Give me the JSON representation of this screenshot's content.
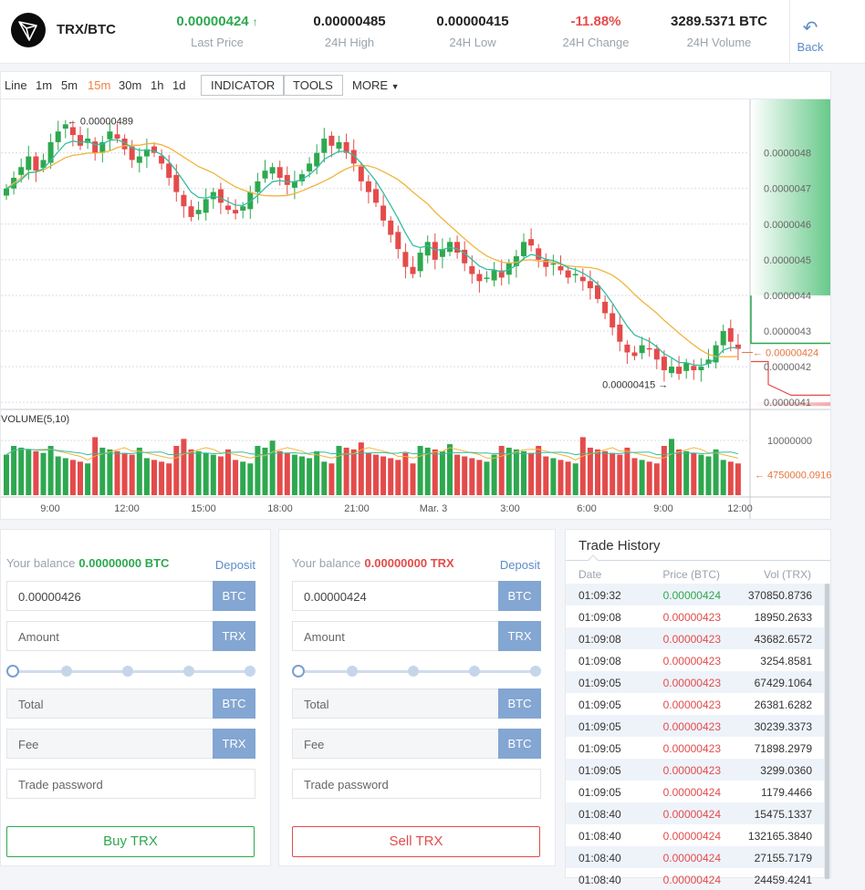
{
  "header": {
    "pair": "TRX/BTC",
    "stats": [
      {
        "value": "0.00000424",
        "label": "Last Price",
        "tone": "green",
        "arrow": "up"
      },
      {
        "value": "0.00000485",
        "label": "24H High",
        "tone": "dark"
      },
      {
        "value": "0.00000415",
        "label": "24H Low",
        "tone": "dark"
      },
      {
        "value": "-11.88%",
        "label": "24H Change",
        "tone": "red"
      },
      {
        "value": "3289.5371 BTC",
        "label": "24H Volume",
        "tone": "dark"
      }
    ],
    "back_label": "Back"
  },
  "toolbar": {
    "intervals": [
      "Line",
      "1m",
      "5m",
      "15m",
      "30m",
      "1h",
      "1d"
    ],
    "active_interval": "15m",
    "indicator_label": "INDICATOR",
    "tools_label": "TOOLS",
    "more_label": "MORE"
  },
  "chart_data": {
    "type": "candlestick",
    "price_axis_ticks": [
      "0.0000048",
      "0.0000047",
      "0.0000046",
      "0.0000045",
      "0.0000044",
      "0.0000043",
      "0.0000042",
      "0.0000041"
    ],
    "price_range": [
      4.08e-06,
      4.95e-06
    ],
    "last_price_tag": "0.00000424",
    "high_annotation": "0.00000489",
    "low_annotation": "0.00000415",
    "volume_label": "VOLUME(5,10)",
    "volume_axis_ticks": [
      "10000000"
    ],
    "volume_range": [
      0,
      12000000
    ],
    "volume_last_tag": "4750000.0916",
    "time_ticks": [
      "9:00",
      "12:00",
      "15:00",
      "18:00",
      "21:00",
      "Mar. 3",
      "3:00",
      "6:00",
      "9:00",
      "12:00"
    ],
    "time_span_hours": [
      7.5,
      12.5
    ],
    "candles_close": [
      4.7,
      4.73,
      4.76,
      4.79,
      4.75,
      4.78,
      4.83,
      4.86,
      4.88,
      4.85,
      4.82,
      4.84,
      4.8,
      4.83,
      4.86,
      4.84,
      4.81,
      4.78,
      4.79,
      4.81,
      4.8,
      4.77,
      4.73,
      4.69,
      4.65,
      4.62,
      4.64,
      4.67,
      4.69,
      4.66,
      4.64,
      4.63,
      4.65,
      4.69,
      4.72,
      4.75,
      4.76,
      4.73,
      4.71,
      4.72,
      4.74,
      4.77,
      4.8,
      4.84,
      4.82,
      4.83,
      4.8,
      4.77,
      4.72,
      4.69,
      4.66,
      4.61,
      4.57,
      4.53,
      4.48,
      4.46,
      4.52,
      4.55,
      4.5,
      4.53,
      4.55,
      4.52,
      4.49,
      4.46,
      4.44,
      4.45,
      4.47,
      4.45,
      4.49,
      4.51,
      4.55,
      4.54,
      4.5,
      4.48,
      4.49,
      4.47,
      4.45,
      4.46,
      4.44,
      4.42,
      4.39,
      4.35,
      4.31,
      4.27,
      4.24,
      4.23,
      4.26,
      4.25,
      4.22,
      4.19,
      4.2,
      4.18,
      4.21,
      4.19,
      4.2,
      4.22,
      4.26,
      4.3,
      4.27,
      4.25
    ]
  },
  "buy_form": {
    "balance_label": "Your balance",
    "balance_value": "0.00000000 BTC",
    "deposit_label": "Deposit",
    "price": "0.00000426",
    "price_unit": "BTC",
    "amount_placeholder": "Amount",
    "amount_unit": "TRX",
    "total_label": "Total",
    "total_unit": "BTC",
    "fee_label": "Fee",
    "fee_unit": "TRX",
    "password_placeholder": "Trade password",
    "submit_label": "Buy TRX"
  },
  "sell_form": {
    "balance_label": "Your balance",
    "balance_value": "0.00000000 TRX",
    "deposit_label": "Deposit",
    "price": "0.00000424",
    "price_unit": "BTC",
    "amount_placeholder": "Amount",
    "amount_unit": "TRX",
    "total_label": "Total",
    "total_unit": "BTC",
    "fee_label": "Fee",
    "fee_unit": "BTC",
    "password_placeholder": "Trade password",
    "submit_label": "Sell TRX"
  },
  "trade_history": {
    "title": "Trade History",
    "columns": [
      "Date",
      "Price (BTC)",
      "Vol (TRX)"
    ],
    "rows": [
      {
        "time": "01:09:32",
        "price": "0.00000424",
        "side": "buy",
        "vol": "370850.8736"
      },
      {
        "time": "01:09:08",
        "price": "0.00000423",
        "side": "sell",
        "vol": "18950.2633"
      },
      {
        "time": "01:09:08",
        "price": "0.00000423",
        "side": "sell",
        "vol": "43682.6572"
      },
      {
        "time": "01:09:08",
        "price": "0.00000423",
        "side": "sell",
        "vol": "3254.8581"
      },
      {
        "time": "01:09:05",
        "price": "0.00000423",
        "side": "sell",
        "vol": "67429.1064"
      },
      {
        "time": "01:09:05",
        "price": "0.00000423",
        "side": "sell",
        "vol": "26381.6282"
      },
      {
        "time": "01:09:05",
        "price": "0.00000423",
        "side": "sell",
        "vol": "30239.3373"
      },
      {
        "time": "01:09:05",
        "price": "0.00000423",
        "side": "sell",
        "vol": "71898.2979"
      },
      {
        "time": "01:09:05",
        "price": "0.00000423",
        "side": "sell",
        "vol": "3299.0360"
      },
      {
        "time": "01:09:05",
        "price": "0.00000424",
        "side": "sell",
        "vol": "1179.4466"
      },
      {
        "time": "01:08:40",
        "price": "0.00000424",
        "side": "sell",
        "vol": "15475.1337"
      },
      {
        "time": "01:08:40",
        "price": "0.00000424",
        "side": "sell",
        "vol": "132165.3840"
      },
      {
        "time": "01:08:40",
        "price": "0.00000424",
        "side": "sell",
        "vol": "27155.7179"
      },
      {
        "time": "01:08:40",
        "price": "0.00000424",
        "side": "sell",
        "vol": "24459.4241"
      }
    ]
  },
  "colors": {
    "up": "#2ea84f",
    "down": "#e44b4b",
    "accent": "#5b8bc9",
    "active_tab": "#f27d3d",
    "ma_fast": "#33bda0",
    "ma_slow": "#f0b43c"
  }
}
